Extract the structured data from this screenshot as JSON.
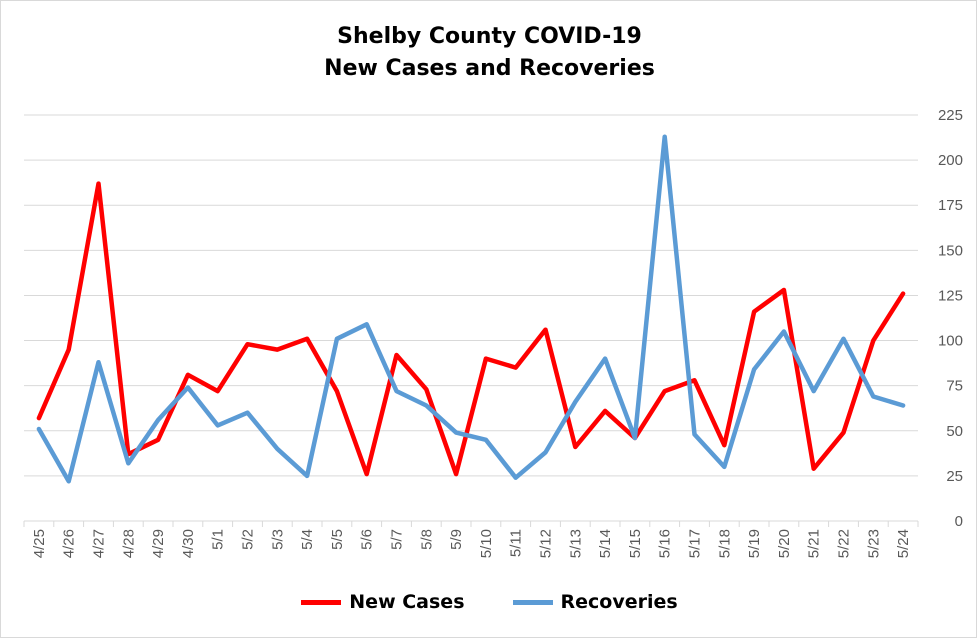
{
  "colors": {
    "new_cases": "#ff0000",
    "recoveries": "#5b9bd5",
    "grid": "#d9d9d9",
    "axis_text": "#595959"
  },
  "chart_data": {
    "type": "line",
    "title": "Shelby County COVID-19",
    "subtitle": "New Cases and Recoveries",
    "xlabel": "",
    "ylabel": "",
    "categories": [
      "4/25",
      "4/26",
      "4/27",
      "4/28",
      "4/29",
      "4/30",
      "5/1",
      "5/2",
      "5/3",
      "5/4",
      "5/5",
      "5/6",
      "5/7",
      "5/8",
      "5/9",
      "5/10",
      "5/11",
      "5/12",
      "5/13",
      "5/14",
      "5/15",
      "5/16",
      "5/17",
      "5/18",
      "5/19",
      "5/20",
      "5/21",
      "5/22",
      "5/23",
      "5/24"
    ],
    "ylim": [
      0,
      225
    ],
    "yticks": [
      0,
      25,
      50,
      75,
      100,
      125,
      150,
      175,
      200,
      225
    ],
    "y_axis_side": "right",
    "grid": true,
    "legend_position": "bottom",
    "series": [
      {
        "name": "New Cases",
        "color": "#ff0000",
        "values": [
          57,
          95,
          187,
          37,
          45,
          81,
          72,
          98,
          95,
          101,
          72,
          26,
          92,
          73,
          26,
          90,
          85,
          106,
          41,
          61,
          46,
          72,
          78,
          42,
          116,
          128,
          29,
          49,
          100,
          126
        ]
      },
      {
        "name": "Recoveries",
        "color": "#5b9bd5",
        "values": [
          51,
          22,
          88,
          32,
          56,
          74,
          53,
          60,
          40,
          25,
          101,
          109,
          72,
          64,
          49,
          45,
          24,
          38,
          66,
          90,
          46,
          213,
          48,
          30,
          84,
          105,
          72,
          101,
          69,
          64
        ]
      }
    ]
  }
}
